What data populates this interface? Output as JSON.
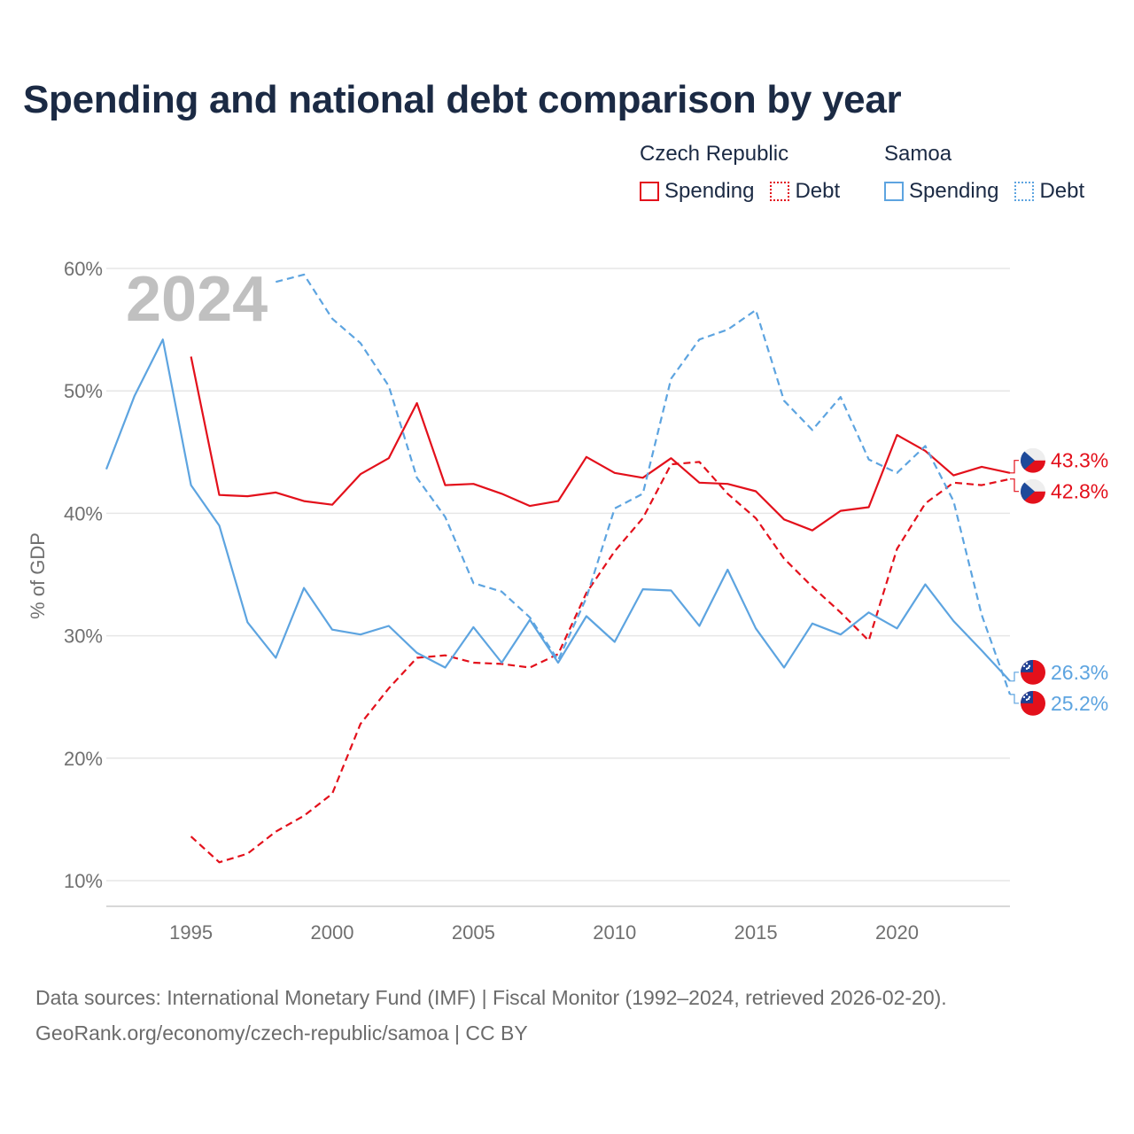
{
  "title": "Spending and national debt comparison by year",
  "legend": {
    "groups": [
      {
        "name": "Czech Republic",
        "color": "#e3101b",
        "items": [
          "Spending",
          "Debt"
        ]
      },
      {
        "name": "Samoa",
        "color": "#5da4e0",
        "items": [
          "Spending",
          "Debt"
        ]
      }
    ]
  },
  "footer": {
    "line1": "Data sources: International Monetary Fund (IMF) | Fiscal Monitor (1992–2024, retrieved 2026-02-20).",
    "line2": "GeoRank.org/economy/czech-republic/samoa | CC BY"
  },
  "chart_data": {
    "type": "line",
    "title": "Spending and national debt comparison by year",
    "year_label": "2024",
    "ylabel": "% of GDP",
    "xlabel": "",
    "xlim": [
      1992,
      2024
    ],
    "ylim": [
      10,
      60
    ],
    "x_ticks": [
      1995,
      2000,
      2005,
      2010,
      2015,
      2020
    ],
    "y_ticks": [
      {
        "value": 10,
        "label": "10%"
      },
      {
        "value": 20,
        "label": "20%"
      },
      {
        "value": 30,
        "label": "30%"
      },
      {
        "value": 40,
        "label": "40%"
      },
      {
        "value": 50,
        "label": "50%"
      },
      {
        "value": 60,
        "label": "60%"
      }
    ],
    "grid": true,
    "series": [
      {
        "name": "Czech Republic Spending",
        "country": "Czech Republic",
        "metric": "Spending",
        "color": "#e3101b",
        "dash": "solid",
        "flag": "cz",
        "start": 1995,
        "values": [
          52.8,
          41.5,
          41.4,
          41.7,
          41.0,
          40.7,
          43.2,
          44.5,
          49.0,
          42.3,
          42.4,
          41.6,
          40.6,
          41.0,
          44.6,
          43.3,
          42.9,
          44.5,
          42.5,
          42.4,
          41.8,
          39.5,
          38.6,
          40.2,
          40.5,
          46.4,
          45.1,
          43.1,
          43.8,
          43.3
        ],
        "end_label": "43.3%"
      },
      {
        "name": "Czech Republic Debt",
        "country": "Czech Republic",
        "metric": "Debt",
        "color": "#e3101b",
        "dash": "dashed",
        "flag": "cz",
        "start": 1995,
        "values": [
          13.6,
          11.5,
          12.2,
          14.0,
          15.3,
          17.1,
          22.8,
          25.7,
          28.2,
          28.4,
          27.8,
          27.7,
          27.4,
          28.5,
          33.5,
          36.9,
          39.6,
          44.0,
          44.2,
          41.6,
          39.6,
          36.3,
          34.0,
          31.9,
          29.6,
          37.1,
          40.8,
          42.5,
          42.3,
          42.8
        ],
        "end_label": "42.8%"
      },
      {
        "name": "Samoa Spending",
        "country": "Samoa",
        "metric": "Spending",
        "color": "#5da4e0",
        "dash": "solid",
        "flag": "ws",
        "start": 1992,
        "values": [
          43.6,
          49.6,
          54.2,
          42.3,
          39.0,
          31.1,
          28.2,
          33.9,
          30.5,
          30.1,
          30.8,
          28.6,
          27.4,
          30.7,
          27.8,
          31.3,
          27.8,
          31.6,
          29.5,
          33.8,
          33.7,
          30.8,
          35.4,
          30.6,
          27.4,
          31.0,
          30.1,
          31.9,
          30.6,
          34.2,
          31.2,
          28.8,
          26.3
        ],
        "end_label": "26.3%"
      },
      {
        "name": "Samoa Debt",
        "country": "Samoa",
        "metric": "Debt",
        "color": "#5da4e0",
        "dash": "dashed",
        "flag": "ws",
        "start": 1998,
        "values": [
          58.9,
          59.5,
          55.9,
          53.9,
          50.4,
          42.9,
          39.7,
          34.3,
          33.6,
          31.5,
          28.0,
          33.1,
          40.4,
          41.6,
          51.0,
          54.2,
          55.0,
          56.6,
          49.2,
          46.8,
          49.5,
          44.4,
          43.3,
          45.5,
          41.0,
          31.7,
          25.2
        ],
        "end_label": "25.2%"
      }
    ]
  }
}
